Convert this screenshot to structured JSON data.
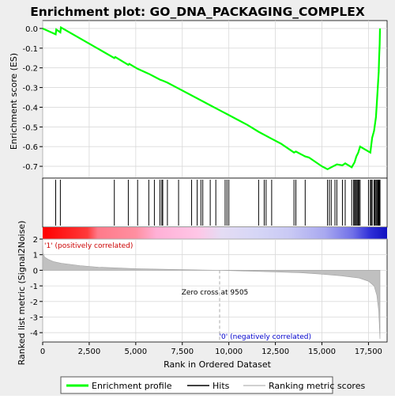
{
  "chart_data": {
    "type": "line",
    "title": "Enrichment plot: GO_DNA_PACKAGING_COMPLEX",
    "xlabel": "Rank in Ordered Dataset",
    "es_ylabel": "Enrichment score (ES)",
    "metric_ylabel": "Ranked list metric (Signal2Noise)",
    "xlim": [
      0,
      18500
    ],
    "es_ylim": [
      -0.76,
      0.04
    ],
    "metric_ylim": [
      -4.6,
      2.0
    ],
    "x_ticks": [
      0,
      2500,
      5000,
      7500,
      10000,
      12500,
      15000,
      17500
    ],
    "x_tick_labels": [
      "0",
      "2,500",
      "5,000",
      "7,500",
      "10,000",
      "12,500",
      "15,000",
      "17,500"
    ],
    "es_ticks": [
      0.0,
      -0.1,
      -0.2,
      -0.3,
      -0.4,
      -0.5,
      -0.6,
      -0.7
    ],
    "es_tick_labels": [
      "0.0",
      "-0.1",
      "-0.2",
      "-0.3",
      "-0.4",
      "-0.5",
      "-0.6",
      "-0.7"
    ],
    "metric_ticks": [
      2,
      1,
      0,
      -1,
      -2,
      -3,
      -4
    ],
    "metric_tick_labels": [
      "2",
      "1",
      "0",
      "-1",
      "-2",
      "-3",
      "-4"
    ],
    "grid": true,
    "enrichment_profile": [
      [
        0,
        0.0
      ],
      [
        700,
        -0.03
      ],
      [
        730,
        -0.005
      ],
      [
        950,
        -0.02
      ],
      [
        980,
        0.005
      ],
      [
        3850,
        -0.15
      ],
      [
        3900,
        -0.145
      ],
      [
        4600,
        -0.185
      ],
      [
        4650,
        -0.18
      ],
      [
        5100,
        -0.205
      ],
      [
        5700,
        -0.23
      ],
      [
        6000,
        -0.245
      ],
      [
        6300,
        -0.26
      ],
      [
        6450,
        -0.265
      ],
      [
        6700,
        -0.275
      ],
      [
        7300,
        -0.305
      ],
      [
        8000,
        -0.34
      ],
      [
        8600,
        -0.37
      ],
      [
        9000,
        -0.39
      ],
      [
        9500,
        -0.415
      ],
      [
        10000,
        -0.44
      ],
      [
        10500,
        -0.465
      ],
      [
        11000,
        -0.49
      ],
      [
        11600,
        -0.525
      ],
      [
        12300,
        -0.56
      ],
      [
        12800,
        -0.585
      ],
      [
        13500,
        -0.63
      ],
      [
        13600,
        -0.625
      ],
      [
        14100,
        -0.65
      ],
      [
        14300,
        -0.655
      ],
      [
        15000,
        -0.7
      ],
      [
        15300,
        -0.715
      ],
      [
        15500,
        -0.705
      ],
      [
        15800,
        -0.69
      ],
      [
        16100,
        -0.695
      ],
      [
        16250,
        -0.685
      ],
      [
        16600,
        -0.705
      ],
      [
        16750,
        -0.68
      ],
      [
        16850,
        -0.65
      ],
      [
        16950,
        -0.63
      ],
      [
        17050,
        -0.6
      ],
      [
        17600,
        -0.63
      ],
      [
        17650,
        -0.59
      ],
      [
        17700,
        -0.555
      ],
      [
        17800,
        -0.52
      ],
      [
        17900,
        -0.45
      ],
      [
        17950,
        -0.38
      ],
      [
        18000,
        -0.3
      ],
      [
        18050,
        -0.22
      ],
      [
        18070,
        -0.15
      ],
      [
        18100,
        -0.08
      ],
      [
        18120,
        0.0
      ]
    ],
    "hits": [
      700,
      950,
      3850,
      4600,
      5100,
      5700,
      6000,
      6300,
      6400,
      6450,
      6700,
      7300,
      8000,
      8300,
      8500,
      8600,
      9000,
      9300,
      9800,
      9900,
      10000,
      11600,
      11900,
      12000,
      12300,
      13500,
      13600,
      14100,
      15300,
      15400,
      15500,
      15700,
      15800,
      16100,
      16250,
      16600,
      16700,
      16750,
      16800,
      16850,
      16900,
      16950,
      17000,
      17050,
      17500,
      17600,
      17650,
      17700,
      17800,
      17850,
      17900,
      17950,
      18000,
      18030,
      18060,
      18090,
      18120
    ],
    "ranked_metric": [
      [
        0,
        1.6
      ],
      [
        20,
        1.1
      ],
      [
        100,
        0.85
      ],
      [
        300,
        0.7
      ],
      [
        600,
        0.55
      ],
      [
        1000,
        0.45
      ],
      [
        2000,
        0.3
      ],
      [
        3000,
        0.2
      ],
      [
        5000,
        0.1
      ],
      [
        7500,
        0.04
      ],
      [
        9505,
        0.0
      ],
      [
        11000,
        -0.05
      ],
      [
        12500,
        -0.1
      ],
      [
        14000,
        -0.17
      ],
      [
        15000,
        -0.25
      ],
      [
        16000,
        -0.35
      ],
      [
        17000,
        -0.5
      ],
      [
        17500,
        -0.7
      ],
      [
        17800,
        -1.0
      ],
      [
        17950,
        -1.6
      ],
      [
        18050,
        -2.6
      ],
      [
        18120,
        -4.4
      ]
    ],
    "zero_cross": 9505,
    "zero_cross_label": "Zero cross at 9505",
    "positive_label": "'1' (positively correlated)",
    "negative_label": "'0' (negatively correlated)",
    "legend": {
      "placement": "bottom",
      "entries": [
        "Enrichment profile",
        "Hits",
        "Ranking metric scores"
      ]
    }
  },
  "colors": {
    "frame_bg": "#eeeeee",
    "plot_bg": "#ffffff",
    "grid": "#d9d9d9",
    "profile": "#00ff00",
    "hit": "#000000",
    "metric_fill": "#c0c0c0",
    "zero_cross_line": "#aaaaaa",
    "positive_text": "#cc0000",
    "negative_text": "#0000cc"
  }
}
